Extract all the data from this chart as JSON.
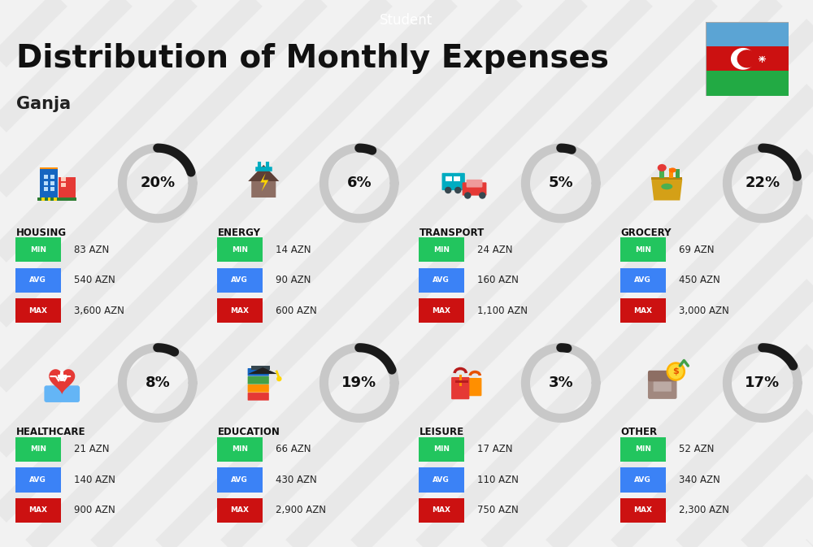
{
  "title": "Distribution of Monthly Expenses",
  "subtitle": "Student",
  "city": "Ganja",
  "background_color": "#f2f2f2",
  "header_bg": "#111111",
  "header_text_color": "#ffffff",
  "categories": [
    {
      "name": "HOUSING",
      "percent": 20,
      "min": "83 AZN",
      "avg": "540 AZN",
      "max": "3,600 AZN",
      "row": 0,
      "col": 0
    },
    {
      "name": "ENERGY",
      "percent": 6,
      "min": "14 AZN",
      "avg": "90 AZN",
      "max": "600 AZN",
      "row": 0,
      "col": 1
    },
    {
      "name": "TRANSPORT",
      "percent": 5,
      "min": "24 AZN",
      "avg": "160 AZN",
      "max": "1,100 AZN",
      "row": 0,
      "col": 2
    },
    {
      "name": "GROCERY",
      "percent": 22,
      "min": "69 AZN",
      "avg": "450 AZN",
      "max": "3,000 AZN",
      "row": 0,
      "col": 3
    },
    {
      "name": "HEALTHCARE",
      "percent": 8,
      "min": "21 AZN",
      "avg": "140 AZN",
      "max": "900 AZN",
      "row": 1,
      "col": 0
    },
    {
      "name": "EDUCATION",
      "percent": 19,
      "min": "66 AZN",
      "avg": "430 AZN",
      "max": "2,900 AZN",
      "row": 1,
      "col": 1
    },
    {
      "name": "LEISURE",
      "percent": 3,
      "min": "17 AZN",
      "avg": "110 AZN",
      "max": "750 AZN",
      "row": 1,
      "col": 2
    },
    {
      "name": "OTHER",
      "percent": 17,
      "min": "52 AZN",
      "avg": "340 AZN",
      "max": "2,300 AZN",
      "row": 1,
      "col": 3
    }
  ],
  "min_color": "#22c55e",
  "avg_color": "#3b82f6",
  "max_color": "#cc1111",
  "donut_active_color": "#1a1a1a",
  "donut_inactive_color": "#c8c8c8",
  "category_name_color": "#111111",
  "value_text_color": "#222222",
  "stripe_color": "#e8e8e8"
}
